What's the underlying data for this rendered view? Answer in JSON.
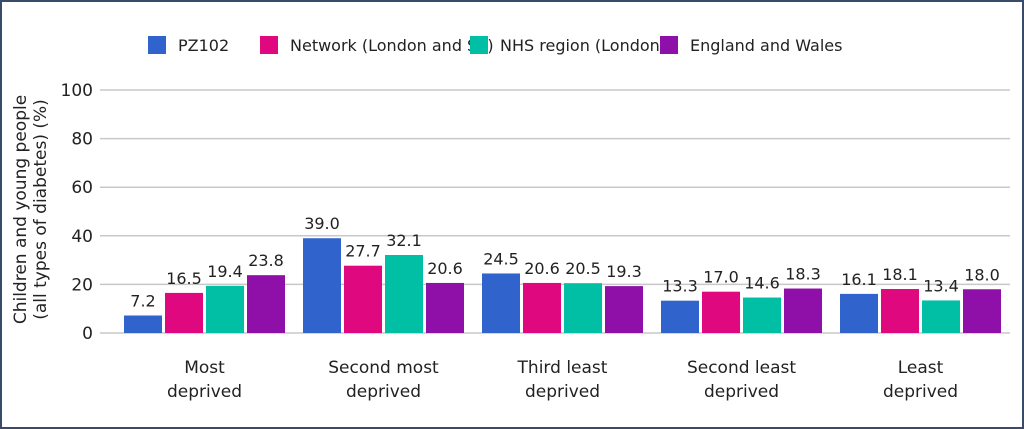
{
  "chart_data": {
    "type": "bar",
    "title": "",
    "xlabel": "",
    "ylabel": [
      "Children and young people",
      "(all types of diabetes) (%)"
    ],
    "ylim": [
      0,
      100
    ],
    "yticks": [
      "0",
      "20",
      "40",
      "60",
      "80",
      "100"
    ],
    "ytick_values": [
      0,
      20,
      40,
      60,
      80,
      100
    ],
    "grid": true,
    "legend_position": "top-right",
    "categories": [
      [
        "Most",
        "deprived"
      ],
      [
        "Second most",
        "deprived"
      ],
      [
        "Third least",
        "deprived"
      ],
      [
        "Second least",
        "deprived"
      ],
      [
        "Least",
        "deprived"
      ]
    ],
    "series": [
      {
        "name": "PZ102",
        "color": "#3163cc",
        "values": [
          7.2,
          39.0,
          24.5,
          13.3,
          16.1
        ],
        "labels": [
          "7.2",
          "39.0",
          "24.5",
          "13.3",
          "16.1"
        ]
      },
      {
        "name": "Network (London and SE)",
        "color": "#e0087f",
        "values": [
          16.5,
          27.7,
          20.6,
          17.0,
          18.1
        ],
        "labels": [
          "16.5",
          "27.7",
          "20.6",
          "17.0",
          "18.1"
        ]
      },
      {
        "name": "NHS region (London)",
        "color": "#00bfa5",
        "values": [
          19.4,
          32.1,
          20.5,
          14.6,
          13.4
        ],
        "labels": [
          "19.4",
          "32.1",
          "20.5",
          "14.6",
          "13.4"
        ]
      },
      {
        "name": "England and Wales",
        "color": "#8e10a8",
        "values": [
          23.8,
          20.6,
          19.3,
          18.3,
          18.0
        ],
        "labels": [
          "23.8",
          "20.6",
          "19.3",
          "18.3",
          "18.0"
        ]
      }
    ]
  }
}
